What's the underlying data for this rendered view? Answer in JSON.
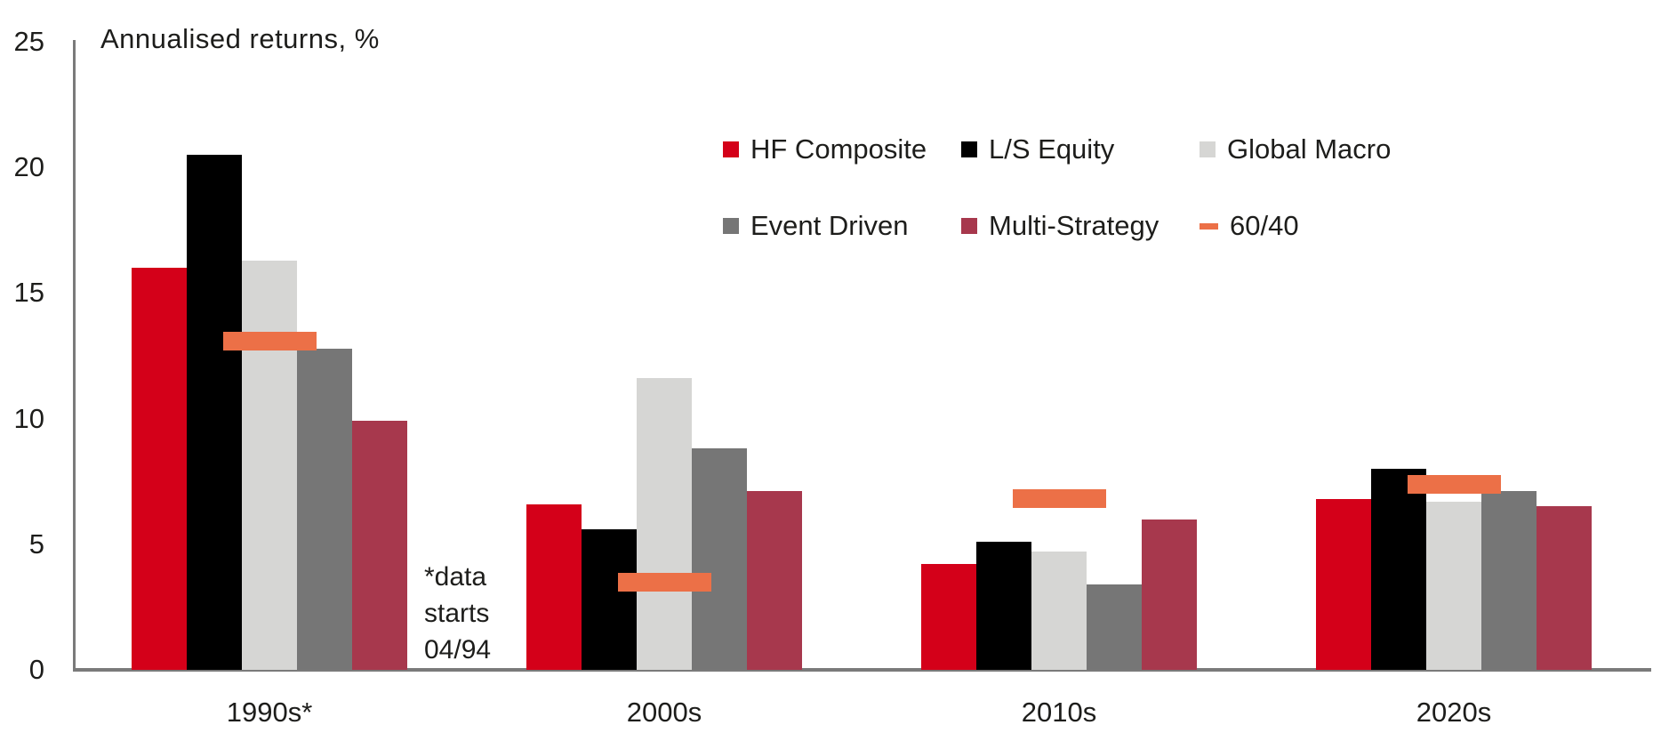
{
  "title": "Annualised returns, %",
  "annotation": {
    "lines": [
      "*data",
      "starts",
      "04/94"
    ]
  },
  "legend": {
    "rows": [
      [
        {
          "label": "HF Composite",
          "swatch": "square",
          "color": "#d40019"
        },
        {
          "label": "L/S Equity",
          "swatch": "square",
          "color": "#000000"
        },
        {
          "label": "Global Macro",
          "swatch": "square",
          "color": "#d6d6d4"
        }
      ],
      [
        {
          "label": "Event Driven",
          "swatch": "square",
          "color": "#767676"
        },
        {
          "label": "Multi-Strategy",
          "swatch": "square",
          "color": "#a7384d"
        },
        {
          "label": "60/40",
          "swatch": "dash",
          "color": "#ec7047"
        }
      ]
    ]
  },
  "chart_data": {
    "type": "bar",
    "title": "Annualised returns, %",
    "ylabel": "Annualised returns, %",
    "xlabel": "",
    "categories": [
      "1990s*",
      "2000s",
      "2010s",
      "2020s"
    ],
    "series": [
      {
        "name": "HF Composite",
        "color": "#d40019",
        "values": [
          16.0,
          6.6,
          4.2,
          6.8
        ]
      },
      {
        "name": "L/S Equity",
        "color": "#000000",
        "values": [
          20.5,
          5.6,
          5.1,
          8.0
        ]
      },
      {
        "name": "Global Macro",
        "color": "#d6d6d4",
        "values": [
          16.3,
          11.6,
          4.7,
          6.7
        ]
      },
      {
        "name": "Event Driven",
        "color": "#767676",
        "values": [
          12.8,
          8.8,
          3.4,
          7.1
        ]
      },
      {
        "name": "Multi-Strategy",
        "color": "#a7384d",
        "values": [
          9.9,
          7.1,
          6.0,
          6.5
        ]
      }
    ],
    "marker_series": {
      "name": "60/40",
      "color": "#ec7047",
      "values": [
        13.1,
        3.5,
        6.8,
        7.4
      ]
    },
    "ylim": [
      0,
      25
    ],
    "y_ticks": [
      25,
      20,
      15,
      10,
      5,
      0
    ],
    "grid": false,
    "legend_position": "top-right-inside",
    "annotation": "*data starts 04/94",
    "axis_color": "#7a7a7a"
  }
}
